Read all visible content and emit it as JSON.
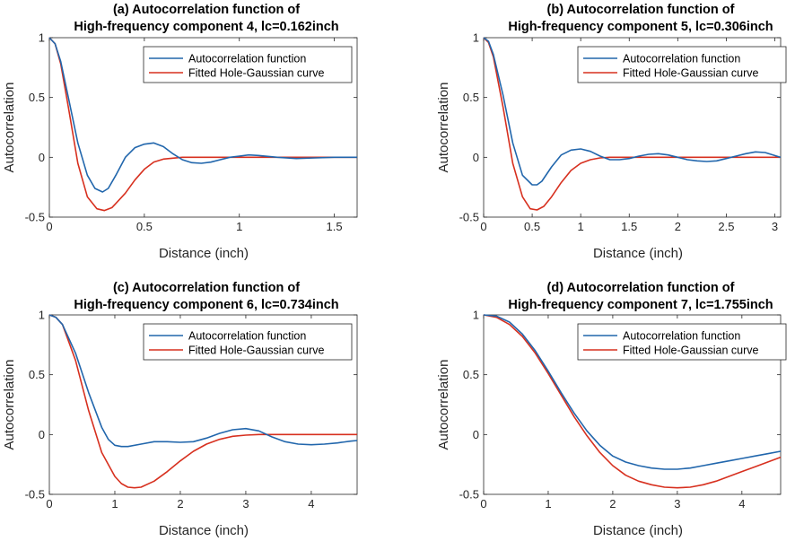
{
  "chart_data": [
    {
      "type": "line",
      "panel": "a",
      "title_line1": "(a) Autocorrelation function of",
      "title_line2": "High-frequency component 4, lc=0.162inch",
      "xlabel": "Distance (inch)",
      "ylabel": "Autocorrelation",
      "xlim": [
        0,
        1.62
      ],
      "ylim": [
        -0.5,
        1
      ],
      "xticks": [
        {
          "v": 0,
          "label": "0"
        },
        {
          "v": 0.5,
          "label": "0.5"
        },
        {
          "v": 1,
          "label": "1"
        },
        {
          "v": 1.5,
          "label": "1.5"
        }
      ],
      "yticks": [
        {
          "v": -0.5,
          "label": "-0.5"
        },
        {
          "v": 0,
          "label": "0"
        },
        {
          "v": 0.5,
          "label": "0.5"
        },
        {
          "v": 1,
          "label": "1"
        }
      ],
      "legend_position": "top-right",
      "series": [
        {
          "name": "Autocorrelation function",
          "color": "#2166ac",
          "x": [
            0,
            0.03,
            0.06,
            0.1,
            0.15,
            0.2,
            0.24,
            0.28,
            0.31,
            0.35,
            0.4,
            0.45,
            0.5,
            0.55,
            0.6,
            0.65,
            0.7,
            0.75,
            0.8,
            0.85,
            0.9,
            0.95,
            1.0,
            1.05,
            1.1,
            1.2,
            1.3,
            1.4,
            1.5,
            1.62
          ],
          "y": [
            1,
            0.95,
            0.8,
            0.5,
            0.12,
            -0.15,
            -0.26,
            -0.29,
            -0.26,
            -0.15,
            0.0,
            0.08,
            0.11,
            0.12,
            0.09,
            0.03,
            -0.02,
            -0.045,
            -0.05,
            -0.04,
            -0.02,
            0.0,
            0.01,
            0.02,
            0.015,
            0.0,
            -0.01,
            -0.005,
            0.0,
            0.0
          ]
        },
        {
          "name": "Fitted Hole-Gaussian curve",
          "color": "#d7301f",
          "x": [
            0,
            0.03,
            0.06,
            0.1,
            0.15,
            0.2,
            0.25,
            0.29,
            0.33,
            0.4,
            0.45,
            0.5,
            0.55,
            0.6,
            0.7,
            0.8,
            1.0,
            1.62
          ],
          "y": [
            1,
            0.95,
            0.78,
            0.42,
            -0.05,
            -0.33,
            -0.43,
            -0.445,
            -0.42,
            -0.3,
            -0.19,
            -0.1,
            -0.04,
            -0.015,
            0.0,
            0.0,
            0.0,
            0.0
          ]
        }
      ]
    },
    {
      "type": "line",
      "panel": "b",
      "title_line1": "(b) Autocorrelation function of",
      "title_line2": "High-frequency component 5, lc=0.306inch",
      "xlabel": "Distance (inch)",
      "ylabel": "Autocorrelation",
      "xlim": [
        0,
        3.06
      ],
      "ylim": [
        -0.5,
        1
      ],
      "xticks": [
        {
          "v": 0,
          "label": "0"
        },
        {
          "v": 0.5,
          "label": "0.5"
        },
        {
          "v": 1,
          "label": "1"
        },
        {
          "v": 1.5,
          "label": "1.5"
        },
        {
          "v": 2,
          "label": "2"
        },
        {
          "v": 2.5,
          "label": "2.5"
        },
        {
          "v": 3,
          "label": "3"
        }
      ],
      "yticks": [
        {
          "v": -0.5,
          "label": "-0.5"
        },
        {
          "v": 0,
          "label": "0"
        },
        {
          "v": 0.5,
          "label": "0.5"
        },
        {
          "v": 1,
          "label": "1"
        }
      ],
      "legend_position": "top-right",
      "series": [
        {
          "name": "Autocorrelation function",
          "color": "#2166ac",
          "x": [
            0,
            0.05,
            0.1,
            0.2,
            0.3,
            0.4,
            0.5,
            0.55,
            0.6,
            0.7,
            0.8,
            0.9,
            1.0,
            1.1,
            1.2,
            1.3,
            1.4,
            1.5,
            1.6,
            1.7,
            1.8,
            1.9,
            2.0,
            2.1,
            2.2,
            2.3,
            2.4,
            2.5,
            2.6,
            2.7,
            2.8,
            2.9,
            3.06
          ],
          "y": [
            1,
            0.97,
            0.86,
            0.52,
            0.12,
            -0.15,
            -0.23,
            -0.23,
            -0.2,
            -0.08,
            0.02,
            0.06,
            0.07,
            0.05,
            0.01,
            -0.02,
            -0.02,
            -0.01,
            0.01,
            0.025,
            0.03,
            0.02,
            0.0,
            -0.02,
            -0.03,
            -0.035,
            -0.03,
            -0.01,
            0.01,
            0.03,
            0.045,
            0.04,
            0.0
          ]
        },
        {
          "name": "Fitted Hole-Gaussian curve",
          "color": "#d7301f",
          "x": [
            0,
            0.05,
            0.1,
            0.2,
            0.3,
            0.4,
            0.48,
            0.55,
            0.62,
            0.7,
            0.8,
            0.9,
            1.0,
            1.1,
            1.2,
            1.3,
            1.5,
            3.06
          ],
          "y": [
            1,
            0.96,
            0.84,
            0.42,
            -0.05,
            -0.33,
            -0.43,
            -0.44,
            -0.41,
            -0.33,
            -0.21,
            -0.11,
            -0.05,
            -0.02,
            -0.005,
            0.0,
            0.0,
            0.0
          ]
        }
      ]
    },
    {
      "type": "line",
      "panel": "c",
      "title_line1": "(c) Autocorrelation function of",
      "title_line2": "High-frequency component 6, lc=0.734inch",
      "xlabel": "Distance (inch)",
      "ylabel": "Autocorrelation",
      "xlim": [
        0,
        4.7
      ],
      "ylim": [
        -0.5,
        1
      ],
      "xticks": [
        {
          "v": 0,
          "label": "0"
        },
        {
          "v": 1,
          "label": "1"
        },
        {
          "v": 2,
          "label": "2"
        },
        {
          "v": 3,
          "label": "3"
        },
        {
          "v": 4,
          "label": "4"
        }
      ],
      "yticks": [
        {
          "v": -0.5,
          "label": "-0.5"
        },
        {
          "v": 0,
          "label": "0"
        },
        {
          "v": 0.5,
          "label": "0.5"
        },
        {
          "v": 1,
          "label": "1"
        }
      ],
      "legend_position": "top-right",
      "series": [
        {
          "name": "Autocorrelation function",
          "color": "#2166ac",
          "x": [
            0,
            0.1,
            0.2,
            0.4,
            0.6,
            0.8,
            0.9,
            1.0,
            1.1,
            1.2,
            1.4,
            1.6,
            1.8,
            2.0,
            2.2,
            2.4,
            2.6,
            2.8,
            3.0,
            3.2,
            3.4,
            3.6,
            3.8,
            4.0,
            4.2,
            4.4,
            4.6,
            4.7
          ],
          "y": [
            1,
            0.98,
            0.92,
            0.68,
            0.35,
            0.06,
            -0.04,
            -0.09,
            -0.1,
            -0.1,
            -0.08,
            -0.06,
            -0.06,
            -0.065,
            -0.06,
            -0.03,
            0.01,
            0.04,
            0.05,
            0.03,
            -0.02,
            -0.06,
            -0.08,
            -0.085,
            -0.08,
            -0.07,
            -0.055,
            -0.05
          ]
        },
        {
          "name": "Fitted Hole-Gaussian curve",
          "color": "#d7301f",
          "x": [
            0,
            0.1,
            0.2,
            0.4,
            0.6,
            0.8,
            1.0,
            1.1,
            1.2,
            1.3,
            1.4,
            1.6,
            1.8,
            2.0,
            2.2,
            2.4,
            2.6,
            2.8,
            3.0,
            3.2,
            3.5,
            4.7
          ],
          "y": [
            1,
            0.98,
            0.92,
            0.62,
            0.2,
            -0.15,
            -0.35,
            -0.41,
            -0.44,
            -0.445,
            -0.44,
            -0.39,
            -0.31,
            -0.22,
            -0.14,
            -0.08,
            -0.04,
            -0.015,
            -0.005,
            0.0,
            0.0,
            0.0
          ]
        }
      ]
    },
    {
      "type": "line",
      "panel": "d",
      "title_line1": "(d) Autocorrelation function of",
      "title_line2": "High-frequency component 7, lc=1.755inch",
      "xlabel": "Distance (inch)",
      "ylabel": "Autocorrelation",
      "xlim": [
        0,
        4.6
      ],
      "ylim": [
        -0.5,
        1
      ],
      "xticks": [
        {
          "v": 0,
          "label": "0"
        },
        {
          "v": 1,
          "label": "1"
        },
        {
          "v": 2,
          "label": "2"
        },
        {
          "v": 3,
          "label": "3"
        },
        {
          "v": 4,
          "label": "4"
        }
      ],
      "yticks": [
        {
          "v": -0.5,
          "label": "-0.5"
        },
        {
          "v": 0,
          "label": "0"
        },
        {
          "v": 0.5,
          "label": "0.5"
        },
        {
          "v": 1,
          "label": "1"
        }
      ],
      "legend_position": "top-right",
      "series": [
        {
          "name": "Autocorrelation function",
          "color": "#2166ac",
          "x": [
            0,
            0.2,
            0.4,
            0.6,
            0.8,
            1.0,
            1.2,
            1.4,
            1.6,
            1.8,
            2.0,
            2.2,
            2.4,
            2.6,
            2.8,
            3.0,
            3.2,
            3.4,
            3.6,
            3.8,
            4.0,
            4.2,
            4.4,
            4.6
          ],
          "y": [
            1,
            0.99,
            0.94,
            0.84,
            0.7,
            0.53,
            0.35,
            0.18,
            0.03,
            -0.09,
            -0.18,
            -0.23,
            -0.26,
            -0.28,
            -0.29,
            -0.29,
            -0.28,
            -0.26,
            -0.24,
            -0.22,
            -0.2,
            -0.18,
            -0.16,
            -0.14
          ]
        },
        {
          "name": "Fitted Hole-Gaussian curve",
          "color": "#d7301f",
          "x": [
            0,
            0.2,
            0.4,
            0.6,
            0.8,
            1.0,
            1.2,
            1.4,
            1.6,
            1.8,
            2.0,
            2.2,
            2.4,
            2.6,
            2.8,
            3.0,
            3.2,
            3.4,
            3.6,
            3.8,
            4.0,
            4.2,
            4.4,
            4.6
          ],
          "y": [
            1,
            0.98,
            0.92,
            0.82,
            0.68,
            0.51,
            0.33,
            0.15,
            -0.01,
            -0.15,
            -0.26,
            -0.34,
            -0.39,
            -0.42,
            -0.44,
            -0.445,
            -0.44,
            -0.42,
            -0.39,
            -0.35,
            -0.31,
            -0.27,
            -0.23,
            -0.19
          ]
        }
      ]
    }
  ]
}
